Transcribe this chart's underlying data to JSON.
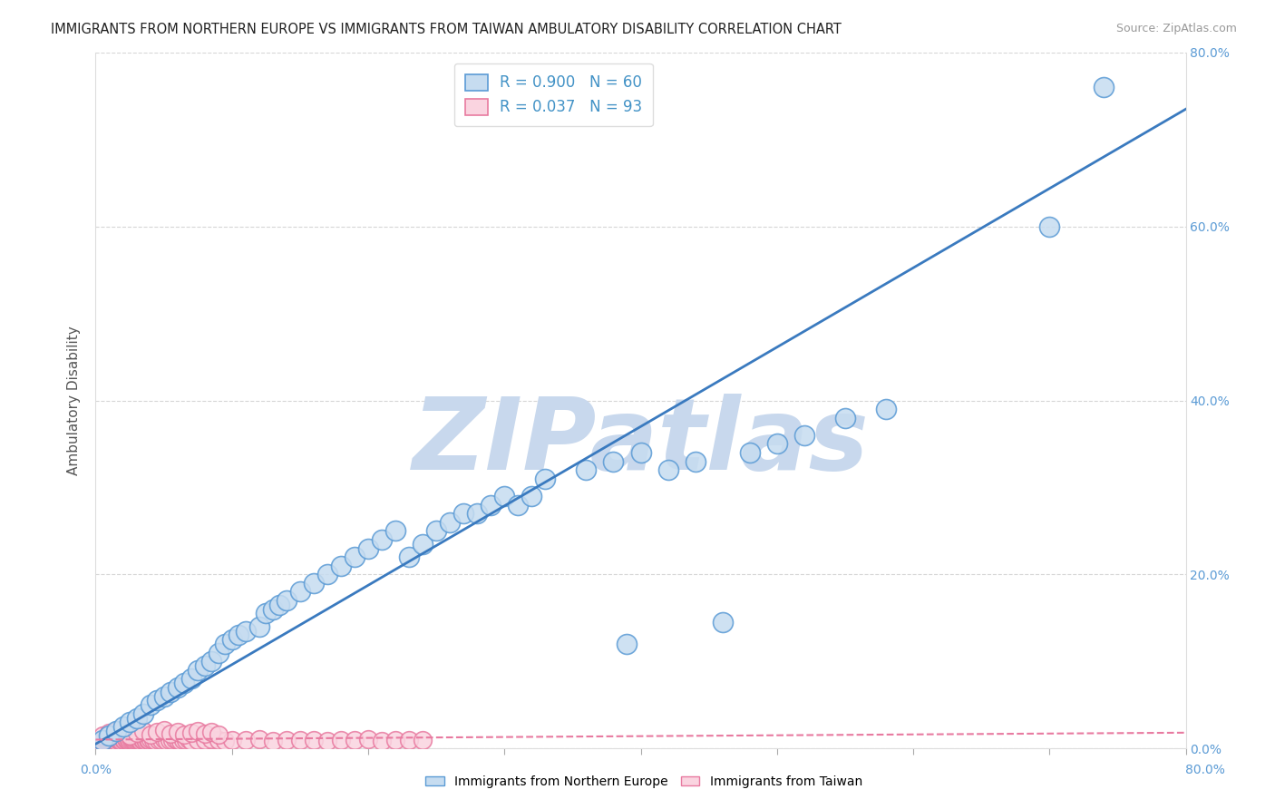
{
  "title": "IMMIGRANTS FROM NORTHERN EUROPE VS IMMIGRANTS FROM TAIWAN AMBULATORY DISABILITY CORRELATION CHART",
  "source": "Source: ZipAtlas.com",
  "ylabel": "Ambulatory Disability",
  "legend_label1": "Immigrants from Northern Europe",
  "legend_label2": "Immigrants from Taiwan",
  "R1": "0.900",
  "N1": "60",
  "R2": "0.037",
  "N2": "93",
  "color_blue_fill": "#c6dcf0",
  "color_blue_edge": "#5b9bd5",
  "color_pink_fill": "#fad4e0",
  "color_pink_edge": "#e87aa0",
  "color_blue_line": "#3a7abf",
  "color_pink_line": "#e87aa0",
  "watermark_color": "#c8d8ed",
  "watermark": "ZIPatlas",
  "xlim": [
    0.0,
    0.8
  ],
  "ylim": [
    0.0,
    0.8
  ],
  "blue_x": [
    0.005,
    0.01,
    0.015,
    0.02,
    0.025,
    0.03,
    0.035,
    0.04,
    0.045,
    0.05,
    0.055,
    0.06,
    0.065,
    0.07,
    0.075,
    0.08,
    0.085,
    0.09,
    0.095,
    0.1,
    0.105,
    0.11,
    0.12,
    0.125,
    0.13,
    0.135,
    0.14,
    0.15,
    0.16,
    0.17,
    0.18,
    0.19,
    0.2,
    0.21,
    0.22,
    0.23,
    0.24,
    0.25,
    0.26,
    0.27,
    0.28,
    0.29,
    0.3,
    0.31,
    0.32,
    0.33,
    0.36,
    0.38,
    0.39,
    0.4,
    0.42,
    0.44,
    0.46,
    0.48,
    0.5,
    0.52,
    0.55,
    0.58,
    0.7,
    0.74
  ],
  "blue_y": [
    0.01,
    0.015,
    0.02,
    0.025,
    0.03,
    0.035,
    0.04,
    0.05,
    0.055,
    0.06,
    0.065,
    0.07,
    0.075,
    0.08,
    0.09,
    0.095,
    0.1,
    0.11,
    0.12,
    0.125,
    0.13,
    0.135,
    0.14,
    0.155,
    0.16,
    0.165,
    0.17,
    0.18,
    0.19,
    0.2,
    0.21,
    0.22,
    0.23,
    0.24,
    0.25,
    0.22,
    0.235,
    0.25,
    0.26,
    0.27,
    0.27,
    0.28,
    0.29,
    0.28,
    0.29,
    0.31,
    0.32,
    0.33,
    0.12,
    0.34,
    0.32,
    0.33,
    0.145,
    0.34,
    0.35,
    0.36,
    0.38,
    0.39,
    0.6,
    0.76
  ],
  "pink_x": [
    0.001,
    0.002,
    0.003,
    0.004,
    0.005,
    0.006,
    0.007,
    0.008,
    0.009,
    0.01,
    0.011,
    0.012,
    0.013,
    0.014,
    0.015,
    0.016,
    0.017,
    0.018,
    0.019,
    0.02,
    0.021,
    0.022,
    0.023,
    0.024,
    0.025,
    0.026,
    0.027,
    0.028,
    0.029,
    0.03,
    0.031,
    0.032,
    0.033,
    0.034,
    0.035,
    0.036,
    0.037,
    0.038,
    0.039,
    0.04,
    0.042,
    0.044,
    0.046,
    0.048,
    0.05,
    0.052,
    0.054,
    0.056,
    0.058,
    0.06,
    0.062,
    0.064,
    0.066,
    0.068,
    0.07,
    0.075,
    0.08,
    0.085,
    0.09,
    0.095,
    0.1,
    0.11,
    0.12,
    0.13,
    0.14,
    0.15,
    0.16,
    0.17,
    0.18,
    0.19,
    0.2,
    0.21,
    0.22,
    0.23,
    0.24,
    0.005,
    0.01,
    0.015,
    0.02,
    0.025,
    0.03,
    0.035,
    0.04,
    0.045,
    0.05,
    0.055,
    0.06,
    0.065,
    0.07,
    0.075,
    0.08,
    0.085,
    0.09
  ],
  "pink_y": [
    0.003,
    0.004,
    0.005,
    0.006,
    0.007,
    0.008,
    0.009,
    0.01,
    0.008,
    0.009,
    0.01,
    0.011,
    0.009,
    0.01,
    0.008,
    0.011,
    0.009,
    0.01,
    0.008,
    0.009,
    0.01,
    0.011,
    0.009,
    0.008,
    0.01,
    0.009,
    0.011,
    0.008,
    0.009,
    0.01,
    0.011,
    0.009,
    0.008,
    0.01,
    0.009,
    0.011,
    0.008,
    0.009,
    0.01,
    0.011,
    0.009,
    0.008,
    0.01,
    0.009,
    0.011,
    0.008,
    0.009,
    0.01,
    0.011,
    0.009,
    0.008,
    0.01,
    0.009,
    0.011,
    0.008,
    0.009,
    0.01,
    0.011,
    0.009,
    0.008,
    0.01,
    0.009,
    0.011,
    0.008,
    0.009,
    0.01,
    0.009,
    0.008,
    0.01,
    0.009,
    0.011,
    0.008,
    0.009,
    0.01,
    0.009,
    0.015,
    0.018,
    0.02,
    0.022,
    0.015,
    0.018,
    0.02,
    0.016,
    0.019,
    0.021,
    0.017,
    0.019,
    0.016,
    0.018,
    0.02,
    0.017,
    0.019,
    0.016
  ],
  "blue_line_x": [
    0.0,
    0.8
  ],
  "blue_line_y": [
    0.005,
    0.735
  ],
  "pink_line_x": [
    0.0,
    0.8
  ],
  "pink_line_y": [
    0.01,
    0.018
  ]
}
